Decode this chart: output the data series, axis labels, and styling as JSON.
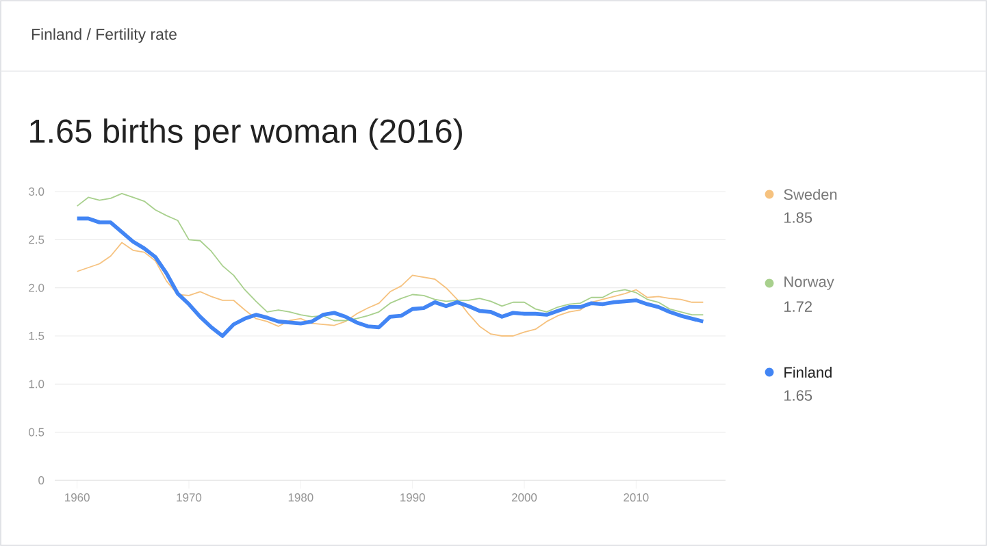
{
  "chart_data": {
    "type": "line",
    "subtitle": "Finland / Fertility rate",
    "title": "1.65 births per woman (2016)",
    "x": [
      1960,
      1961,
      1962,
      1963,
      1964,
      1965,
      1966,
      1967,
      1968,
      1969,
      1970,
      1971,
      1972,
      1973,
      1974,
      1975,
      1976,
      1977,
      1978,
      1979,
      1980,
      1981,
      1982,
      1983,
      1984,
      1985,
      1986,
      1987,
      1988,
      1989,
      1990,
      1991,
      1992,
      1993,
      1994,
      1995,
      1996,
      1997,
      1998,
      1999,
      2000,
      2001,
      2002,
      2003,
      2004,
      2005,
      2006,
      2007,
      2008,
      2009,
      2010,
      2011,
      2012,
      2013,
      2014,
      2015,
      2016
    ],
    "series": [
      {
        "name": "Sweden",
        "color": "#f6c27f",
        "values": [
          2.17,
          2.21,
          2.25,
          2.33,
          2.47,
          2.39,
          2.37,
          2.28,
          2.07,
          1.93,
          1.92,
          1.96,
          1.91,
          1.87,
          1.87,
          1.77,
          1.68,
          1.65,
          1.6,
          1.66,
          1.68,
          1.63,
          1.62,
          1.61,
          1.65,
          1.73,
          1.79,
          1.84,
          1.96,
          2.02,
          2.13,
          2.11,
          2.09,
          2.0,
          1.88,
          1.73,
          1.6,
          1.52,
          1.5,
          1.5,
          1.54,
          1.57,
          1.65,
          1.71,
          1.75,
          1.77,
          1.85,
          1.88,
          1.91,
          1.94,
          1.98,
          1.9,
          1.91,
          1.89,
          1.88,
          1.85,
          1.85
        ]
      },
      {
        "name": "Norway",
        "color": "#a8d08d",
        "values": [
          2.85,
          2.94,
          2.91,
          2.93,
          2.98,
          2.94,
          2.9,
          2.81,
          2.75,
          2.7,
          2.5,
          2.49,
          2.38,
          2.23,
          2.13,
          1.98,
          1.86,
          1.75,
          1.77,
          1.75,
          1.72,
          1.7,
          1.71,
          1.66,
          1.66,
          1.68,
          1.71,
          1.75,
          1.84,
          1.89,
          1.93,
          1.92,
          1.88,
          1.86,
          1.87,
          1.87,
          1.89,
          1.86,
          1.81,
          1.85,
          1.85,
          1.78,
          1.75,
          1.8,
          1.83,
          1.84,
          1.9,
          1.9,
          1.96,
          1.98,
          1.95,
          1.88,
          1.85,
          1.78,
          1.75,
          1.72,
          1.72
        ]
      },
      {
        "name": "Finland",
        "color": "#4285f4",
        "values": [
          2.72,
          2.72,
          2.68,
          2.68,
          2.58,
          2.48,
          2.41,
          2.32,
          2.15,
          1.94,
          1.83,
          1.7,
          1.59,
          1.5,
          1.62,
          1.68,
          1.72,
          1.69,
          1.65,
          1.64,
          1.63,
          1.65,
          1.72,
          1.74,
          1.7,
          1.64,
          1.6,
          1.59,
          1.7,
          1.71,
          1.78,
          1.79,
          1.85,
          1.81,
          1.85,
          1.81,
          1.76,
          1.75,
          1.7,
          1.74,
          1.73,
          1.73,
          1.72,
          1.76,
          1.8,
          1.8,
          1.84,
          1.83,
          1.85,
          1.86,
          1.87,
          1.83,
          1.8,
          1.75,
          1.71,
          1.68,
          1.65
        ]
      }
    ],
    "annotations": [
      "1.85",
      "1.72",
      "1.65"
    ],
    "xlim": [
      1958,
      2018
    ],
    "xticks": [
      1960,
      1970,
      1980,
      1990,
      2000,
      2010
    ],
    "ylim": [
      0,
      3
    ],
    "yticks": [
      0,
      0.5,
      {
        "value": 1,
        "label": "1.0"
      },
      1.5,
      {
        "value": 2,
        "label": "2.0"
      },
      2.5,
      {
        "value": 3,
        "label": "3.0"
      }
    ],
    "grid": "y",
    "legend": "right",
    "marker": "none",
    "line_style": "solid"
  }
}
